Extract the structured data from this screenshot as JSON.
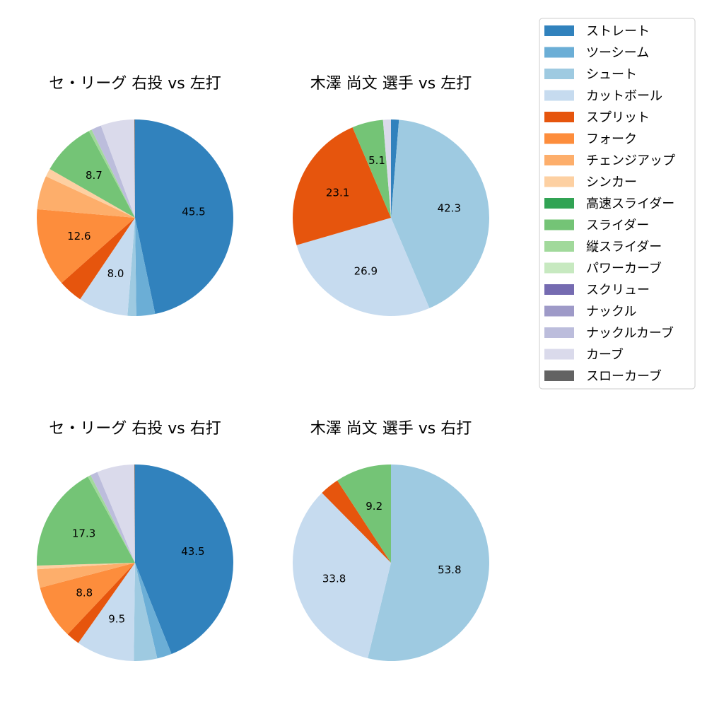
{
  "legend": {
    "placement": "top-right",
    "items": [
      {
        "label": "ストレート",
        "color": "#3182bd"
      },
      {
        "label": "ツーシーム",
        "color": "#6baed6"
      },
      {
        "label": "シュート",
        "color": "#9ecae1"
      },
      {
        "label": "カットボール",
        "color": "#c6dbef"
      },
      {
        "label": "スプリット",
        "color": "#e6550d"
      },
      {
        "label": "フォーク",
        "color": "#fd8d3c"
      },
      {
        "label": "チェンジアップ",
        "color": "#fdae6b"
      },
      {
        "label": "シンカー",
        "color": "#fdd0a2"
      },
      {
        "label": "高速スライダー",
        "color": "#31a354"
      },
      {
        "label": "スライダー",
        "color": "#74c476"
      },
      {
        "label": "縦スライダー",
        "color": "#a1d99b"
      },
      {
        "label": "パワーカーブ",
        "color": "#c7e9c0"
      },
      {
        "label": "スクリュー",
        "color": "#756bb1"
      },
      {
        "label": "ナックル",
        "color": "#9e9ac8"
      },
      {
        "label": "ナックルカーブ",
        "color": "#bcbddc"
      },
      {
        "label": "カーブ",
        "color": "#dadaeb"
      },
      {
        "label": "スローカーブ",
        "color": "#636363"
      }
    ]
  },
  "chart_data": [
    {
      "type": "pie",
      "title": "セ・リーグ 右投 vs 左打",
      "start": "top",
      "direction": "clockwise",
      "slices": [
        {
          "pitch": "ストレート",
          "value": 45.5,
          "label": "45.5"
        },
        {
          "pitch": "ツーシーム",
          "value": 3.0,
          "label": ""
        },
        {
          "pitch": "シュート",
          "value": 1.4,
          "label": ""
        },
        {
          "pitch": "カットボール",
          "value": 8.0,
          "label": "8.0"
        },
        {
          "pitch": "スプリット",
          "value": 3.9,
          "label": ""
        },
        {
          "pitch": "フォーク",
          "value": 12.6,
          "label": "12.6"
        },
        {
          "pitch": "チェンジアップ",
          "value": 5.4,
          "label": ""
        },
        {
          "pitch": "シンカー",
          "value": 1.3,
          "label": ""
        },
        {
          "pitch": "スライダー",
          "value": 8.7,
          "label": "8.7"
        },
        {
          "pitch": "縦スライダー",
          "value": 0.5,
          "label": ""
        },
        {
          "pitch": "ナックルカーブ",
          "value": 1.6,
          "label": ""
        },
        {
          "pitch": "カーブ",
          "value": 5.4,
          "label": ""
        },
        {
          "pitch": "スローカーブ",
          "value": 0.1,
          "label": ""
        }
      ]
    },
    {
      "type": "pie",
      "title": "木澤 尚文 選手 vs 左打",
      "start": "top",
      "direction": "clockwise",
      "slices": [
        {
          "pitch": "ストレート",
          "value": 1.3,
          "label": ""
        },
        {
          "pitch": "シュート",
          "value": 42.3,
          "label": "42.3"
        },
        {
          "pitch": "カットボール",
          "value": 26.9,
          "label": "26.9"
        },
        {
          "pitch": "スプリット",
          "value": 23.1,
          "label": "23.1"
        },
        {
          "pitch": "スライダー",
          "value": 5.1,
          "label": "5.1"
        },
        {
          "pitch": "カーブ",
          "value": 1.3,
          "label": ""
        }
      ]
    },
    {
      "type": "pie",
      "title": "セ・リーグ 右投 vs 右打",
      "start": "top",
      "direction": "clockwise",
      "slices": [
        {
          "pitch": "ストレート",
          "value": 43.5,
          "label": "43.5"
        },
        {
          "pitch": "ツーシーム",
          "value": 2.4,
          "label": ""
        },
        {
          "pitch": "シュート",
          "value": 3.8,
          "label": ""
        },
        {
          "pitch": "カットボール",
          "value": 9.5,
          "label": "9.5"
        },
        {
          "pitch": "スプリット",
          "value": 2.2,
          "label": ""
        },
        {
          "pitch": "フォーク",
          "value": 8.8,
          "label": "8.8"
        },
        {
          "pitch": "チェンジアップ",
          "value": 3.0,
          "label": ""
        },
        {
          "pitch": "シンカー",
          "value": 0.6,
          "label": ""
        },
        {
          "pitch": "スライダー",
          "value": 17.3,
          "label": "17.3"
        },
        {
          "pitch": "縦スライダー",
          "value": 0.5,
          "label": ""
        },
        {
          "pitch": "ナックルカーブ",
          "value": 1.2,
          "label": ""
        },
        {
          "pitch": "カーブ",
          "value": 6.1,
          "label": ""
        },
        {
          "pitch": "スローカーブ",
          "value": 0.1,
          "label": ""
        }
      ]
    },
    {
      "type": "pie",
      "title": "木澤 尚文 選手 vs 右打",
      "start": "top",
      "direction": "clockwise",
      "slices": [
        {
          "pitch": "シュート",
          "value": 53.8,
          "label": "53.8"
        },
        {
          "pitch": "カットボール",
          "value": 33.8,
          "label": "33.8"
        },
        {
          "pitch": "スプリット",
          "value": 3.2,
          "label": ""
        },
        {
          "pitch": "スライダー",
          "value": 9.2,
          "label": "9.2"
        }
      ]
    }
  ]
}
